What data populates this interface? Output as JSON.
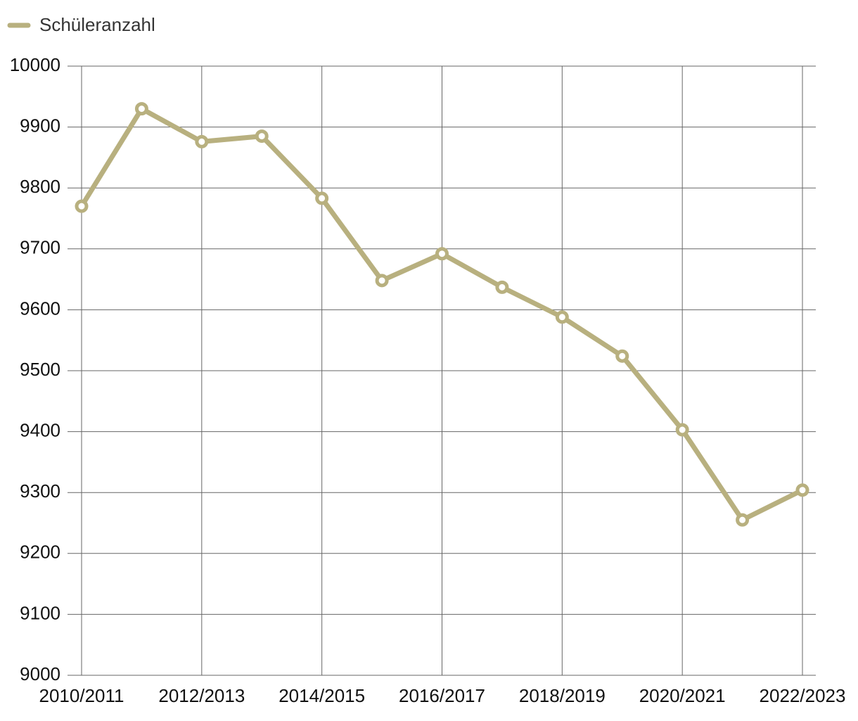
{
  "chart_data": {
    "type": "line",
    "categories": [
      "2010/2011",
      null,
      "2012/2013",
      null,
      "2014/2015",
      null,
      "2016/2017",
      null,
      "2018/2019",
      null,
      "2020/2021",
      null,
      "2022/2023"
    ],
    "series": [
      {
        "name": "Schüleranzahl",
        "color": "#b8b07f",
        "values": [
          9770,
          9930,
          9876,
          9885,
          9783,
          9648,
          9692,
          9637,
          9588,
          9524,
          9403,
          9255,
          9304
        ]
      }
    ],
    "ylim": [
      9000,
      10000
    ],
    "yticks": [
      9000,
      9100,
      9200,
      9300,
      9400,
      9500,
      9600,
      9700,
      9800,
      9900,
      10000
    ],
    "grid": true,
    "legend": "top-left"
  }
}
